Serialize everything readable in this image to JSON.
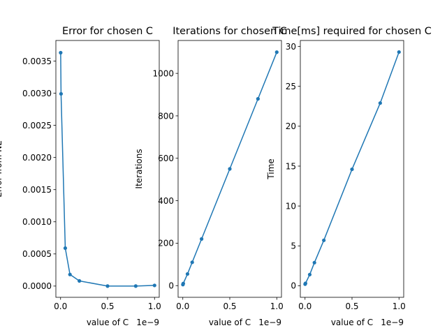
{
  "chart_data": [
    {
      "type": "line",
      "title": "Error for chosen C",
      "xlabel": "value of C",
      "ylabel": "Error from NE",
      "x_offset_label": "1e−9",
      "xlim": [
        -0.05,
        1.05
      ],
      "ylim": [
        -0.000175,
        0.00382
      ],
      "xticks": [
        0.0,
        0.5,
        1.0
      ],
      "xtick_labels": [
        "0.0",
        "0.5",
        "1.0"
      ],
      "yticks": [
        0.0,
        0.0005,
        0.001,
        0.0015,
        0.002,
        0.0025,
        0.003,
        0.0035
      ],
      "ytick_labels": [
        "0.0000",
        "0.0005",
        "0.0010",
        "0.0015",
        "0.0020",
        "0.0025",
        "0.0030",
        "0.0035"
      ],
      "grid": false,
      "series": [
        {
          "color": "#1f77b4",
          "x": [
            0.001,
            0.005,
            0.05,
            0.1,
            0.2,
            0.5,
            0.8,
            1.0
          ],
          "y": [
            0.00363,
            0.00299,
            0.00059,
            0.00018,
            8e-05,
            0.0,
            0.0,
            1e-05
          ]
        }
      ]
    },
    {
      "type": "line",
      "title": "Iterations for chosen C",
      "xlabel": "value of C",
      "ylabel": "Iterations",
      "x_offset_label": "1e−9",
      "xlim": [
        -0.05,
        1.05
      ],
      "ylim": [
        -55,
        1155
      ],
      "xticks": [
        0.0,
        0.5,
        1.0
      ],
      "xtick_labels": [
        "0.0",
        "0.5",
        "1.0"
      ],
      "yticks": [
        0,
        200,
        400,
        600,
        800,
        1000
      ],
      "ytick_labels": [
        "0",
        "200",
        "400",
        "600",
        "800",
        "1000"
      ],
      "grid": false,
      "series": [
        {
          "color": "#1f77b4",
          "x": [
            0.001,
            0.005,
            0.05,
            0.1,
            0.2,
            0.5,
            0.8,
            1.0
          ],
          "y": [
            5,
            10,
            55,
            110,
            220,
            550,
            880,
            1100
          ]
        }
      ]
    },
    {
      "type": "line",
      "title": "Time[ms] required for chosen C",
      "xlabel": "value of C",
      "ylabel": "Time",
      "x_offset_label": "1e−9",
      "xlim": [
        -0.05,
        1.05
      ],
      "ylim": [
        -1.45,
        30.75
      ],
      "xticks": [
        0.0,
        0.5,
        1.0
      ],
      "xtick_labels": [
        "0.0",
        "0.5",
        "1.0"
      ],
      "yticks": [
        0,
        5,
        10,
        15,
        20,
        25,
        30
      ],
      "ytick_labels": [
        "0",
        "5",
        "10",
        "15",
        "20",
        "25",
        "30"
      ],
      "grid": false,
      "series": [
        {
          "color": "#1f77b4",
          "x": [
            0.001,
            0.005,
            0.05,
            0.1,
            0.2,
            0.5,
            0.8,
            1.0
          ],
          "y": [
            0.2,
            0.3,
            1.4,
            2.9,
            5.7,
            14.6,
            22.9,
            29.3
          ]
        }
      ]
    }
  ]
}
